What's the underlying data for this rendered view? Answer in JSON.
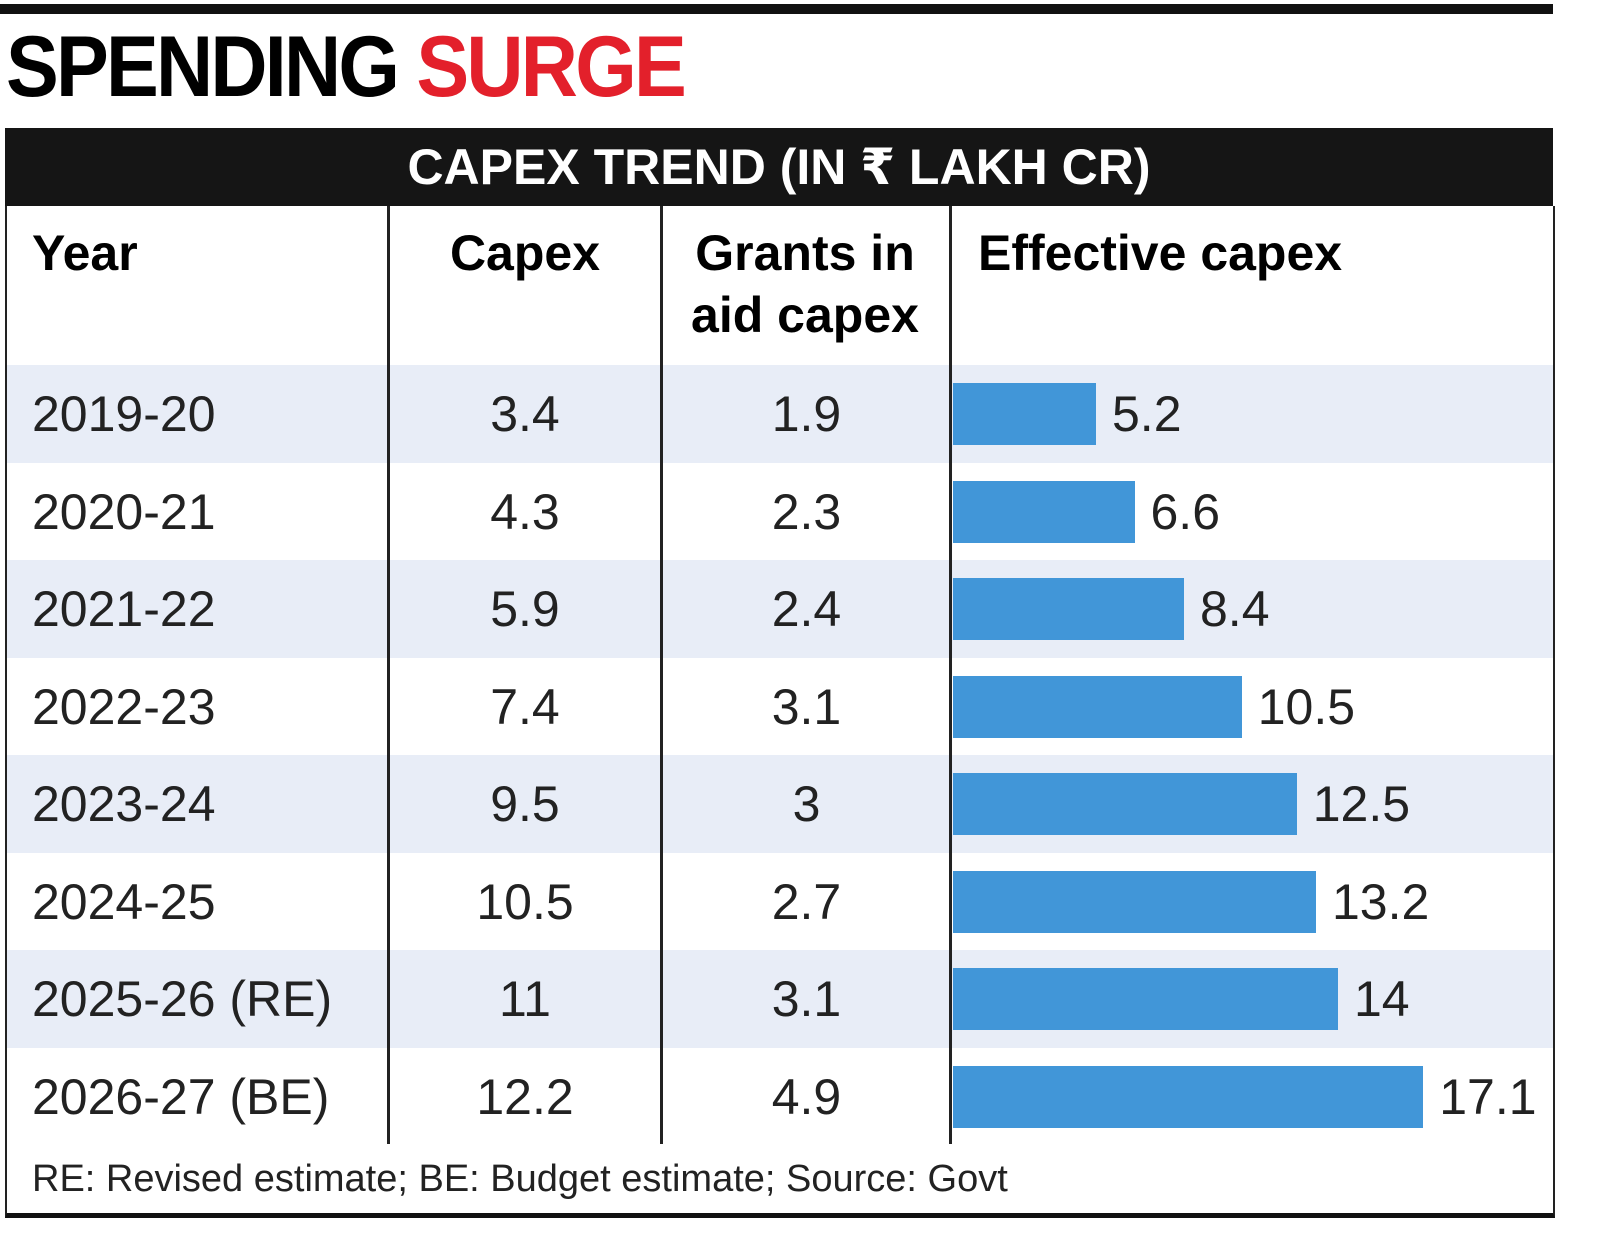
{
  "header": {
    "title": {
      "part1": "SPENDING",
      "part2": "SURGE"
    },
    "subtitle": "CAPEX TREND (IN ₹ LAKH CR)"
  },
  "table": {
    "columns": [
      "Year",
      "Capex",
      "Grants in aid capex",
      "Effective capex"
    ],
    "bar_color": "#4196d8",
    "rows": [
      [
        "2019-20",
        3.4,
        1.9,
        5.2
      ],
      [
        "2020-21",
        4.3,
        2.3,
        6.6
      ],
      [
        "2021-22",
        5.9,
        2.4,
        8.4
      ],
      [
        "2022-23",
        7.4,
        3.1,
        10.5
      ],
      [
        "2023-24",
        9.5,
        3,
        12.5
      ],
      [
        "2024-25",
        10.5,
        2.7,
        13.2
      ],
      [
        "2025-26 (RE)",
        11,
        3.1,
        14
      ],
      [
        "2026-27 (BE)",
        12.2,
        4.9,
        17.1
      ]
    ]
  },
  "footnote": "RE: Revised estimate; BE: Budget estimate; Source: Govt"
}
